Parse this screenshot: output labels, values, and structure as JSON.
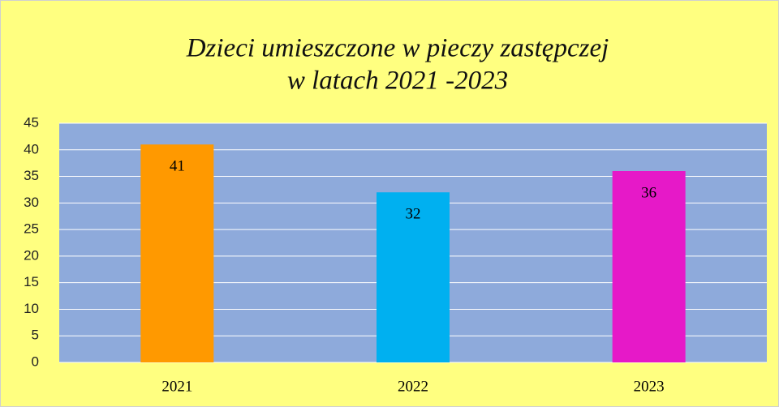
{
  "chart_data": {
    "type": "bar",
    "title": [
      "Dzieci umieszczone w pieczy zastępczej",
      "w latach 2021 -2023"
    ],
    "categories": [
      "2021",
      "2022",
      "2023"
    ],
    "values": [
      41,
      32,
      36
    ],
    "colors": [
      "#ff9900",
      "#00b0f0",
      "#e619c8"
    ],
    "ylim": [
      0,
      45
    ],
    "yticks": [
      0,
      5,
      10,
      15,
      20,
      25,
      30,
      35,
      40,
      45
    ],
    "grid": true,
    "background": "#ffff80",
    "plot_background": "#8eaadb"
  }
}
